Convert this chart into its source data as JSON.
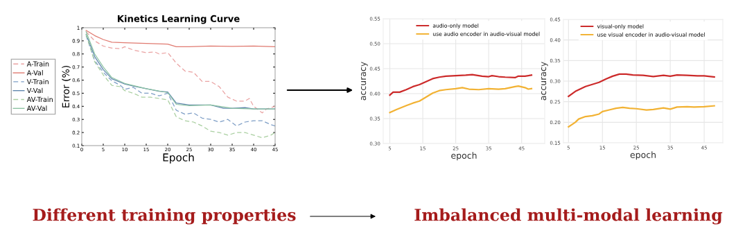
{
  "chart_data": [
    {
      "type": "line",
      "title": "Kinetics Learning Curve",
      "xlabel": "Epoch",
      "ylabel": "Error (%)",
      "xlim": [
        0,
        45
      ],
      "ylim": [
        0.1,
        1
      ],
      "xticks": [
        0,
        5,
        10,
        15,
        20,
        25,
        30,
        35,
        40,
        45
      ],
      "yticks": [
        0.1,
        0.2,
        0.3,
        0.4,
        0.5,
        0.6,
        0.7,
        0.8,
        0.9,
        1
      ],
      "grid": false,
      "legend": "left",
      "marker": "none",
      "annotations": [
        "Different training properties"
      ],
      "series": [
        {
          "name": "A-Train",
          "color": "#eaa2a2",
          "line_style": "dashed",
          "x": [
            1,
            3,
            5,
            7,
            9,
            10,
            12,
            15,
            17,
            18,
            20,
            22,
            24,
            26,
            28,
            30,
            32,
            34,
            36,
            38,
            39,
            40,
            42,
            43,
            45
          ],
          "values": [
            0.97,
            0.9,
            0.86,
            0.845,
            0.84,
            0.855,
            0.83,
            0.81,
            0.815,
            0.8,
            0.81,
            0.73,
            0.67,
            0.66,
            0.59,
            0.59,
            0.55,
            0.47,
            0.44,
            0.44,
            0.46,
            0.4,
            0.35,
            0.38,
            0.4
          ]
        },
        {
          "name": "A-Val",
          "color": "#e07a70",
          "line_style": "solid",
          "x": [
            1,
            3,
            5,
            7,
            10,
            15,
            20,
            22,
            25,
            30,
            35,
            40,
            45
          ],
          "values": [
            0.98,
            0.94,
            0.91,
            0.89,
            0.885,
            0.88,
            0.875,
            0.855,
            0.855,
            0.86,
            0.858,
            0.86,
            0.855
          ]
        },
        {
          "name": "V-Train",
          "color": "#7e9ec6",
          "line_style": "dashed",
          "x": [
            1,
            3,
            5,
            7,
            9,
            10,
            12,
            14,
            16,
            18,
            20,
            22,
            24,
            26,
            28,
            30,
            32,
            34,
            36,
            38,
            40,
            42,
            44,
            45
          ],
          "values": [
            0.94,
            0.75,
            0.66,
            0.595,
            0.56,
            0.53,
            0.545,
            0.5,
            0.5,
            0.48,
            0.5,
            0.37,
            0.34,
            0.35,
            0.31,
            0.3,
            0.28,
            0.3,
            0.25,
            0.28,
            0.29,
            0.29,
            0.26,
            0.25
          ]
        },
        {
          "name": "V-Val",
          "color": "#5f86ad",
          "line_style": "solid",
          "x": [
            1,
            3,
            5,
            7,
            10,
            12,
            15,
            18,
            20,
            22,
            25,
            30,
            33,
            35,
            38,
            40,
            45
          ],
          "values": [
            0.95,
            0.78,
            0.68,
            0.61,
            0.57,
            0.555,
            0.535,
            0.515,
            0.51,
            0.425,
            0.41,
            0.41,
            0.385,
            0.385,
            0.39,
            0.38,
            0.38
          ]
        },
        {
          "name": "AV-Train",
          "color": "#a9cfa0",
          "line_style": "dashed",
          "x": [
            1,
            3,
            5,
            7,
            9,
            10,
            12,
            14,
            16,
            18,
            20,
            22,
            24,
            26,
            28,
            30,
            32,
            34,
            36,
            38,
            40,
            42,
            44,
            45
          ],
          "values": [
            0.95,
            0.74,
            0.64,
            0.56,
            0.55,
            0.52,
            0.5,
            0.47,
            0.47,
            0.46,
            0.45,
            0.32,
            0.29,
            0.28,
            0.25,
            0.21,
            0.2,
            0.18,
            0.2,
            0.2,
            0.18,
            0.16,
            0.18,
            0.2
          ]
        },
        {
          "name": "AV-Val",
          "color": "#8cc3a2",
          "line_style": "solid",
          "x": [
            1,
            3,
            5,
            7,
            10,
            15,
            20,
            22,
            25,
            30,
            35,
            40,
            45
          ],
          "values": [
            0.97,
            0.8,
            0.7,
            0.62,
            0.575,
            0.535,
            0.505,
            0.415,
            0.405,
            0.41,
            0.385,
            0.38,
            0.38
          ]
        }
      ]
    },
    {
      "type": "line",
      "xlabel": "epoch",
      "ylabel": "accuracy",
      "xlim": [
        3,
        52
      ],
      "ylim": [
        0.3,
        0.55
      ],
      "xticks": [
        5,
        15,
        25,
        35,
        45
      ],
      "yticks": [
        {
          "value": 0.3,
          "label": "0.30"
        },
        {
          "value": 0.35,
          "label": "0.35"
        },
        {
          "value": 0.4,
          "label": "0.40"
        },
        {
          "value": 0.45,
          "label": "0.45"
        },
        {
          "value": 0.5,
          "label": "0.50"
        },
        {
          "value": 0.55,
          "label": "0.55"
        }
      ],
      "grid": true,
      "legend": "top right",
      "marker": "none",
      "annotations": [
        "Imbalanced multi-modal learning"
      ],
      "series": [
        {
          "name": "audio-only model",
          "color": "#cc2a2a",
          "x": [
            5,
            6,
            8,
            10,
            12,
            14,
            16,
            18,
            20,
            22,
            25,
            28,
            30,
            33,
            35,
            36,
            38,
            40,
            43,
            44,
            46,
            48
          ],
          "values": [
            0.397,
            0.403,
            0.403,
            0.408,
            0.414,
            0.418,
            0.424,
            0.43,
            0.433,
            0.435,
            0.436,
            0.437,
            0.438,
            0.435,
            0.434,
            0.436,
            0.434,
            0.433,
            0.432,
            0.435,
            0.435,
            0.437
          ]
        },
        {
          "name": "use audio encoder in audio-visual model",
          "color": "#f2b233",
          "x": [
            5,
            7,
            10,
            12,
            14,
            16,
            18,
            20,
            22,
            25,
            27,
            29,
            32,
            35,
            38,
            40,
            43,
            44,
            46,
            47,
            48
          ],
          "values": [
            0.362,
            0.368,
            0.376,
            0.381,
            0.385,
            0.393,
            0.401,
            0.406,
            0.408,
            0.41,
            0.412,
            0.409,
            0.408,
            0.41,
            0.409,
            0.41,
            0.414,
            0.415,
            0.412,
            0.409,
            0.41
          ]
        }
      ]
    },
    {
      "type": "line",
      "xlabel": "epoch",
      "ylabel": "accuracy",
      "xlim": [
        3.5,
        50.5
      ],
      "ylim": [
        0.15,
        0.45
      ],
      "xticks": [
        5,
        15,
        25,
        35,
        45
      ],
      "yticks": [
        {
          "value": 0.15,
          "label": "0.15"
        },
        {
          "value": 0.2,
          "label": "0.20"
        },
        {
          "value": 0.25,
          "label": "0.25"
        },
        {
          "value": 0.3,
          "label": "0.30"
        },
        {
          "value": 0.35,
          "label": "0.35"
        },
        {
          "value": 0.4,
          "label": "0.40"
        },
        {
          "value": 0.45,
          "label": "0.45"
        }
      ],
      "grid": true,
      "legend": "top",
      "marker": "none",
      "series": [
        {
          "name": "visual-only model",
          "color": "#cc2a2a",
          "x": [
            5,
            7,
            10,
            14,
            16,
            18,
            20,
            22,
            24,
            27,
            30,
            33,
            35,
            37,
            40,
            43,
            45,
            48
          ],
          "values": [
            0.263,
            0.275,
            0.287,
            0.297,
            0.305,
            0.312,
            0.317,
            0.317,
            0.315,
            0.314,
            0.311,
            0.314,
            0.312,
            0.315,
            0.314,
            0.313,
            0.313,
            0.31
          ]
        },
        {
          "name": "use visual encoder in audio-visual model",
          "color": "#f2b233",
          "x": [
            5,
            7,
            8,
            10,
            12,
            14,
            15,
            17,
            19,
            21,
            23,
            25,
            28,
            30,
            33,
            35,
            37,
            40,
            42,
            45,
            48
          ],
          "values": [
            0.189,
            0.2,
            0.208,
            0.214,
            0.216,
            0.22,
            0.226,
            0.23,
            0.234,
            0.236,
            0.234,
            0.233,
            0.23,
            0.231,
            0.235,
            0.232,
            0.237,
            0.238,
            0.237,
            0.238,
            0.24
          ]
        }
      ]
    }
  ]
}
